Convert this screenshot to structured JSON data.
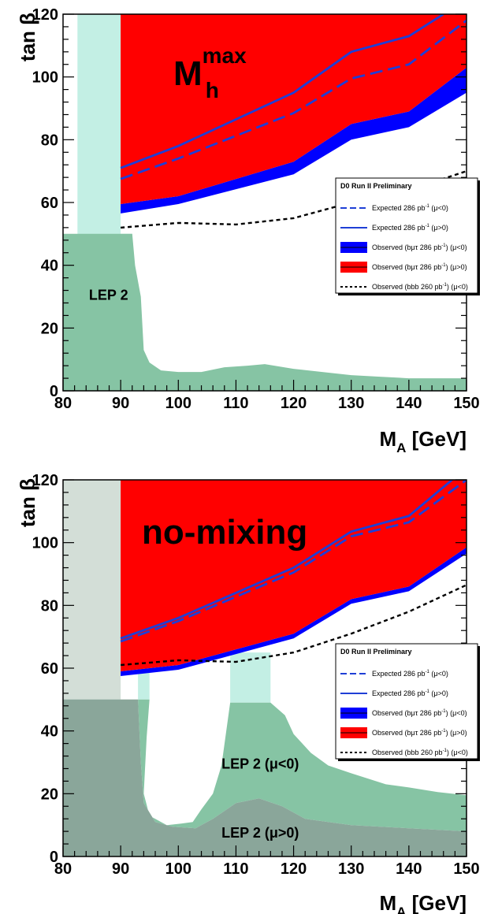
{
  "chart_data": [
    {
      "type": "area",
      "scenario_label": "M",
      "scenario_sup": "max",
      "scenario_sub": "h",
      "xlabel": "M",
      "xlabel_sub": "A",
      "xlabel_units": "[GeV]",
      "ylabel": "tan β",
      "xlim": [
        80,
        150
      ],
      "ylim": [
        0,
        120
      ],
      "xticks": [
        80,
        90,
        100,
        110,
        120,
        130,
        140,
        150
      ],
      "yticks": [
        0,
        20,
        40,
        60,
        80,
        100,
        120
      ],
      "grid": false,
      "legend_position": "right",
      "legend": {
        "title": "D0 Run II Preliminary",
        "entries": [
          {
            "label": "Expected 286 pb",
            "sup": "-1",
            "tail": " (μ<0)",
            "style": "dashed-line",
            "color": "#1f3fd6"
          },
          {
            "label": "Expected 286 pb",
            "sup": "-1",
            "tail": " (μ>0)",
            "style": "solid-line",
            "color": "#1f3fd6"
          },
          {
            "label": "Observed (bμτ 286 pb",
            "sup": "-1",
            "tail": ") (μ<0)",
            "style": "box",
            "color": "#0000ff"
          },
          {
            "label": "Observed (bμτ 286 pb",
            "sup": "-1",
            "tail": ") (μ>0)",
            "style": "box",
            "color": "#ff0000"
          },
          {
            "label": "Observed (bbb 260 pb",
            "sup": "-1",
            "tail": ") (μ<0)",
            "style": "dotted-line",
            "color": "#000000"
          }
        ]
      },
      "region_labels": [
        {
          "text": "LEP 2",
          "x": 84.5,
          "y": 29
        }
      ],
      "series": [
        {
          "key": "lep_light",
          "color": "#c3efe4",
          "points": [
            [
              82.5,
              0
            ],
            [
              82.5,
              120
            ],
            [
              90,
              120
            ],
            [
              90,
              50
            ],
            [
              92,
              50
            ],
            [
              92,
              30
            ],
            [
              92.8,
              0
            ]
          ]
        },
        {
          "key": "lep_dark",
          "color": "#86c4a4",
          "points": [
            [
              80,
              0
            ],
            [
              80,
              50
            ],
            [
              92,
              50
            ],
            [
              92.5,
              40
            ],
            [
              93.5,
              30
            ],
            [
              94,
              13
            ],
            [
              95,
              9
            ],
            [
              97,
              6.5
            ],
            [
              100,
              6
            ],
            [
              104,
              6
            ],
            [
              108,
              7.5
            ],
            [
              112,
              8
            ],
            [
              115,
              8.5
            ],
            [
              120,
              7
            ],
            [
              125,
              6
            ],
            [
              130,
              5
            ],
            [
              135,
              4.5
            ],
            [
              140,
              4
            ],
            [
              145,
              4
            ],
            [
              150,
              4
            ],
            [
              150,
              0
            ]
          ]
        },
        {
          "key": "obs_blue",
          "color": "#0000ff",
          "points": [
            [
              90,
              56.5
            ],
            [
              100,
              59.5
            ],
            [
              120,
              69
            ],
            [
              130,
              80
            ],
            [
              140,
              84
            ],
            [
              150,
              95
            ],
            [
              150,
              103
            ],
            [
              140,
              89
            ],
            [
              130,
              85
            ],
            [
              120,
              73
            ],
            [
              100,
              62
            ],
            [
              90,
              59.5
            ]
          ]
        },
        {
          "key": "obs_red",
          "color": "#ff0000",
          "points": [
            [
              90,
              59.5
            ],
            [
              100,
              62
            ],
            [
              120,
              73
            ],
            [
              130,
              85
            ],
            [
              140,
              89
            ],
            [
              150,
              103
            ],
            [
              150,
              120
            ],
            [
              90,
              120
            ]
          ]
        },
        {
          "key": "exp_mu_gt0",
          "color": "#1f3fd6",
          "style": "solid",
          "points": [
            [
              90,
              71
            ],
            [
              100,
              78
            ],
            [
              120,
              95
            ],
            [
              130,
              108
            ],
            [
              140,
              113
            ],
            [
              146,
              120
            ]
          ]
        },
        {
          "key": "exp_mu_lt0",
          "color": "#1f3fd6",
          "style": "dashed",
          "points": [
            [
              90,
              67.5
            ],
            [
              100,
              74
            ],
            [
              120,
              88.5
            ],
            [
              130,
              99.5
            ],
            [
              140,
              104
            ],
            [
              150,
              118
            ]
          ]
        },
        {
          "key": "obs_bbb",
          "color": "#000000",
          "style": "dotted",
          "points": [
            [
              90,
              52
            ],
            [
              100,
              53.5
            ],
            [
              110,
              53
            ],
            [
              120,
              55
            ],
            [
              130,
              60
            ],
            [
              140,
              64
            ],
            [
              150,
              70
            ]
          ]
        }
      ]
    },
    {
      "type": "area",
      "scenario_label": "no-mixing",
      "xlabel": "M",
      "xlabel_sub": "A",
      "xlabel_units": "[GeV]",
      "ylabel": "tan β",
      "xlim": [
        80,
        150
      ],
      "ylim": [
        0,
        120
      ],
      "xticks": [
        80,
        90,
        100,
        110,
        120,
        130,
        140,
        150
      ],
      "yticks": [
        0,
        20,
        40,
        60,
        80,
        100,
        120
      ],
      "grid": false,
      "legend_position": "right",
      "legend": {
        "title": "D0 Run II Preliminary",
        "entries": [
          {
            "label": "Expected 286 pb",
            "sup": "-1",
            "tail": " (μ<0)",
            "style": "dashed-line",
            "color": "#1f3fd6"
          },
          {
            "label": "Expected 286 pb",
            "sup": "-1",
            "tail": " (μ>0)",
            "style": "solid-line",
            "color": "#1f3fd6"
          },
          {
            "label": "Observed (bμτ 286 pb",
            "sup": "-1",
            "tail": ") (μ<0)",
            "style": "box",
            "color": "#0000ff"
          },
          {
            "label": "Observed (bμτ 286 pb",
            "sup": "-1",
            "tail": ") (μ>0)",
            "style": "box",
            "color": "#ff0000"
          },
          {
            "label": "Observed (bbb 260 pb",
            "sup": "-1",
            "tail": ") (μ<0)",
            "style": "dotted-line",
            "color": "#000000"
          }
        ]
      },
      "region_labels": [
        {
          "text": "LEP 2 (μ<0)",
          "x": 107.5,
          "y": 28
        },
        {
          "text": "LEP 2 (μ>0)",
          "x": 107.5,
          "y": 6
        }
      ],
      "series": [
        {
          "key": "lep_light_left",
          "color": "#d3ded7",
          "points": [
            [
              80,
              0
            ],
            [
              80,
              120
            ],
            [
              90,
              120
            ],
            [
              90,
              50
            ],
            [
              93,
              50
            ],
            [
              93,
              0
            ]
          ]
        },
        {
          "key": "lep_light_mid",
          "color": "#c3efe4",
          "points": [
            [
              93,
              50
            ],
            [
              93,
              65
            ],
            [
              95,
              65
            ],
            [
              95,
              50
            ]
          ]
        },
        {
          "key": "lep_light_right",
          "color": "#c3efe4",
          "points": [
            [
              109,
              49
            ],
            [
              109,
              65
            ],
            [
              116,
              65
            ],
            [
              116,
              49
            ]
          ]
        },
        {
          "key": "lep_mu_lt0",
          "color": "#86c4a4",
          "points": [
            [
              93,
              50
            ],
            [
              95,
              50
            ],
            [
              94.5,
              38
            ],
            [
              94,
              20
            ],
            [
              95,
              13
            ],
            [
              98,
              10
            ],
            [
              100.5,
              10.5
            ],
            [
              102.5,
              11
            ],
            [
              104,
              15
            ],
            [
              106,
              20
            ],
            [
              107.5,
              29
            ],
            [
              109,
              49
            ],
            [
              116,
              49
            ],
            [
              118.5,
              45
            ],
            [
              120,
              39
            ],
            [
              123,
              33
            ],
            [
              126,
              29
            ],
            [
              130,
              26.5
            ],
            [
              136,
              23
            ],
            [
              140,
              22
            ],
            [
              145,
              20.5
            ],
            [
              150,
              19.5
            ],
            [
              150,
              8
            ],
            [
              140,
              9
            ],
            [
              130,
              10
            ],
            [
              122,
              12
            ],
            [
              118,
              16
            ],
            [
              114,
              18.5
            ],
            [
              110,
              17
            ],
            [
              106,
              12
            ],
            [
              103,
              9
            ],
            [
              99,
              9.5
            ],
            [
              96,
              11
            ],
            [
              94,
              17
            ],
            [
              93.5,
              30
            ],
            [
              93,
              50
            ]
          ]
        },
        {
          "key": "lep_mu_gt0",
          "color": "#8aa69a",
          "points": [
            [
              80,
              0
            ],
            [
              80,
              50
            ],
            [
              93,
              50
            ],
            [
              93.5,
              30
            ],
            [
              94,
              17
            ],
            [
              96,
              11
            ],
            [
              99,
              9.5
            ],
            [
              103,
              9
            ],
            [
              106,
              12
            ],
            [
              110,
              17
            ],
            [
              114,
              18.5
            ],
            [
              118,
              16
            ],
            [
              122,
              12
            ],
            [
              130,
              10
            ],
            [
              140,
              9
            ],
            [
              150,
              8
            ],
            [
              150,
              0
            ]
          ]
        },
        {
          "key": "obs_blue",
          "color": "#0000ff",
          "points": [
            [
              90,
              57.5
            ],
            [
              100,
              59.5
            ],
            [
              120,
              69.5
            ],
            [
              130,
              80.5
            ],
            [
              140,
              84.5
            ],
            [
              150,
              96.5
            ],
            [
              150,
              98.5
            ],
            [
              140,
              86
            ],
            [
              130,
              82
            ],
            [
              120,
              71
            ],
            [
              100,
              61
            ],
            [
              90,
              59
            ]
          ]
        },
        {
          "key": "obs_red",
          "color": "#ff0000",
          "points": [
            [
              90,
              59
            ],
            [
              100,
              61
            ],
            [
              120,
              71
            ],
            [
              130,
              82
            ],
            [
              140,
              86
            ],
            [
              150,
              98.5
            ],
            [
              150,
              120
            ],
            [
              90,
              120
            ]
          ]
        },
        {
          "key": "exp_mu_gt0",
          "color": "#1f3fd6",
          "style": "solid",
          "points": [
            [
              90,
              69.5
            ],
            [
              100,
              76
            ],
            [
              120,
              92
            ],
            [
              130,
              103.5
            ],
            [
              140,
              108.5
            ],
            [
              147.5,
              120
            ]
          ]
        },
        {
          "key": "exp_mu_lt0",
          "color": "#1f3fd6",
          "style": "dashed",
          "points": [
            [
              90,
              68.5
            ],
            [
              100,
              75
            ],
            [
              120,
              90.5
            ],
            [
              130,
              102
            ],
            [
              140,
              106.5
            ],
            [
              150,
              120
            ]
          ]
        },
        {
          "key": "obs_bbb",
          "color": "#000000",
          "style": "dotted",
          "points": [
            [
              90,
              61
            ],
            [
              100,
              62.5
            ],
            [
              110,
              62
            ],
            [
              120,
              65
            ],
            [
              130,
              71
            ],
            [
              140,
              78
            ],
            [
              150,
              86.5
            ]
          ]
        }
      ]
    }
  ]
}
